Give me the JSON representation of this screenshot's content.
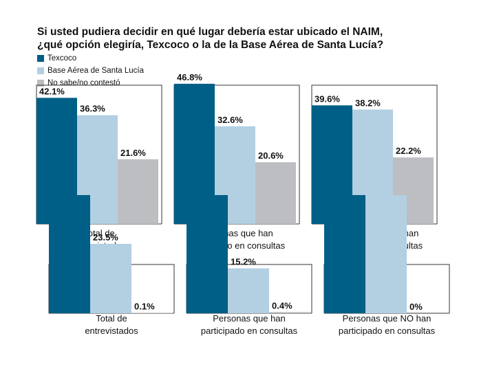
{
  "title_lines": [
    "Si usted pudiera decidir en qué lugar debería estar ubicado el NAIM,",
    "¿qué opción elegiría, Texcoco o la de la Base Aérea de Santa Lucía?"
  ],
  "legend": [
    {
      "label": "Texcoco",
      "color": "#005F86"
    },
    {
      "label": "Base Aérea de Santa Lucía",
      "color": "#B3CFE2"
    },
    {
      "label": "No sabe/no contestó",
      "color": "#BDBEC1"
    }
  ],
  "chart_data": [
    {
      "type": "bar",
      "categories": [
        "Total de entrevistados",
        "Personas que han participado en consultas",
        "Personas que NO han participado en consultas"
      ],
      "category_lines": [
        [
          "Total de",
          "entrevistados"
        ],
        [
          "Personas que han",
          "participado en consultas"
        ],
        [
          "Personas que NO han",
          "participado en consultas"
        ]
      ],
      "series": [
        {
          "name": "Texcoco",
          "values": [
            42.1,
            46.8,
            39.6
          ],
          "labels": [
            "42.1%",
            "46.8%",
            "39.6%"
          ]
        },
        {
          "name": "Base Aérea de Santa Lucía",
          "values": [
            36.3,
            32.6,
            38.2
          ],
          "labels": [
            "36.3%",
            "32.6%",
            "38.2%"
          ]
        },
        {
          "name": "No sabe/no contestó",
          "values": [
            21.6,
            20.6,
            22.2
          ],
          "labels": [
            "21.6%",
            "20.6%",
            "22.2%"
          ]
        }
      ],
      "ylim": [
        0,
        50
      ]
    },
    {
      "type": "bar",
      "categories": [
        "Total de entrevistados",
        "Personas que han participado en consultas",
        "Personas que NO han participado en consultas"
      ],
      "category_lines": [
        [
          "Total de",
          "entrevistados"
        ],
        [
          "Personas que han",
          "participado en consultas"
        ],
        [
          "Personas que NO han",
          "participado en consultas"
        ]
      ],
      "series": [
        {
          "name": "Texcoco",
          "values": [
            40.0,
            40.0,
            40.0
          ],
          "labels": [
            "",
            "",
            ""
          ]
        },
        {
          "name": "Base Aérea de Santa Lucía",
          "values": [
            23.5,
            15.2,
            40.0
          ],
          "labels": [
            "23.5%",
            "15.2%",
            ""
          ]
        },
        {
          "name": "No sabe/no contestó",
          "values": [
            0.1,
            0.4,
            0
          ],
          "labels": [
            "0.1%",
            "0.4%",
            "0%"
          ]
        }
      ],
      "ylim": [
        0,
        50
      ]
    }
  ]
}
